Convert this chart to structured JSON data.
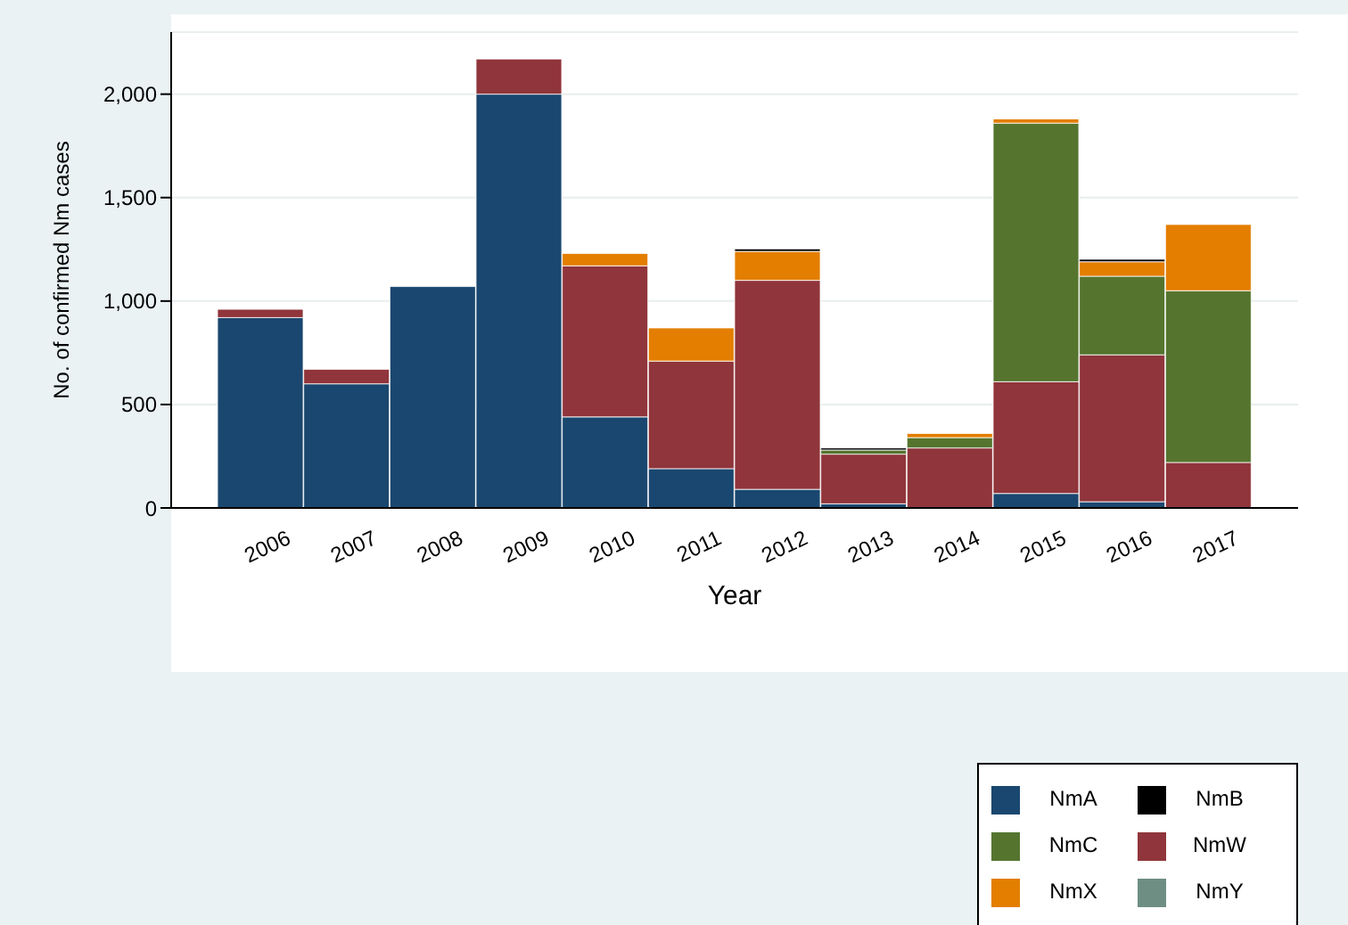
{
  "chart_data": {
    "type": "bar",
    "stacked": true,
    "xlabel": "Year",
    "ylabel": "No. of confirmed Nm cases",
    "categories": [
      "2006",
      "2007",
      "2008",
      "2009",
      "2010",
      "2011",
      "2012",
      "2013",
      "2014",
      "2015",
      "2016",
      "2017"
    ],
    "series": [
      {
        "name": "NmA",
        "color": "#1a476f",
        "values": [
          920,
          600,
          1070,
          2000,
          440,
          190,
          90,
          20,
          0,
          70,
          30,
          0
        ]
      },
      {
        "name": "NmW",
        "color": "#90353b",
        "values": [
          40,
          70,
          0,
          170,
          730,
          520,
          1010,
          240,
          290,
          540,
          710,
          220
        ]
      },
      {
        "name": "NmC",
        "color": "#55752f",
        "values": [
          0,
          0,
          0,
          0,
          0,
          0,
          0,
          20,
          50,
          1250,
          380,
          830
        ]
      },
      {
        "name": "NmX",
        "color": "#e37e00",
        "values": [
          0,
          0,
          0,
          0,
          60,
          160,
          140,
          null,
          20,
          20,
          70,
          320
        ]
      },
      {
        "name": "NmY",
        "color": "#6e8e84",
        "values": [
          0,
          0,
          0,
          0,
          0,
          0,
          0,
          0,
          0,
          0,
          0,
          0
        ]
      },
      {
        "name": "NmB",
        "color": "#000000",
        "values": [
          0,
          0,
          0,
          0,
          0,
          0,
          12,
          10,
          0,
          0,
          12,
          0
        ]
      }
    ],
    "ylim": [
      0,
      2300
    ],
    "yticks": [
      0,
      {
        "value": 500,
        "label": "500"
      },
      {
        "value": 1000,
        "label": "1,000"
      },
      {
        "value": 1500,
        "label": "1,500"
      },
      {
        "value": 2000,
        "label": "2,000"
      }
    ],
    "grid": "y",
    "legend": "bottom right"
  }
}
